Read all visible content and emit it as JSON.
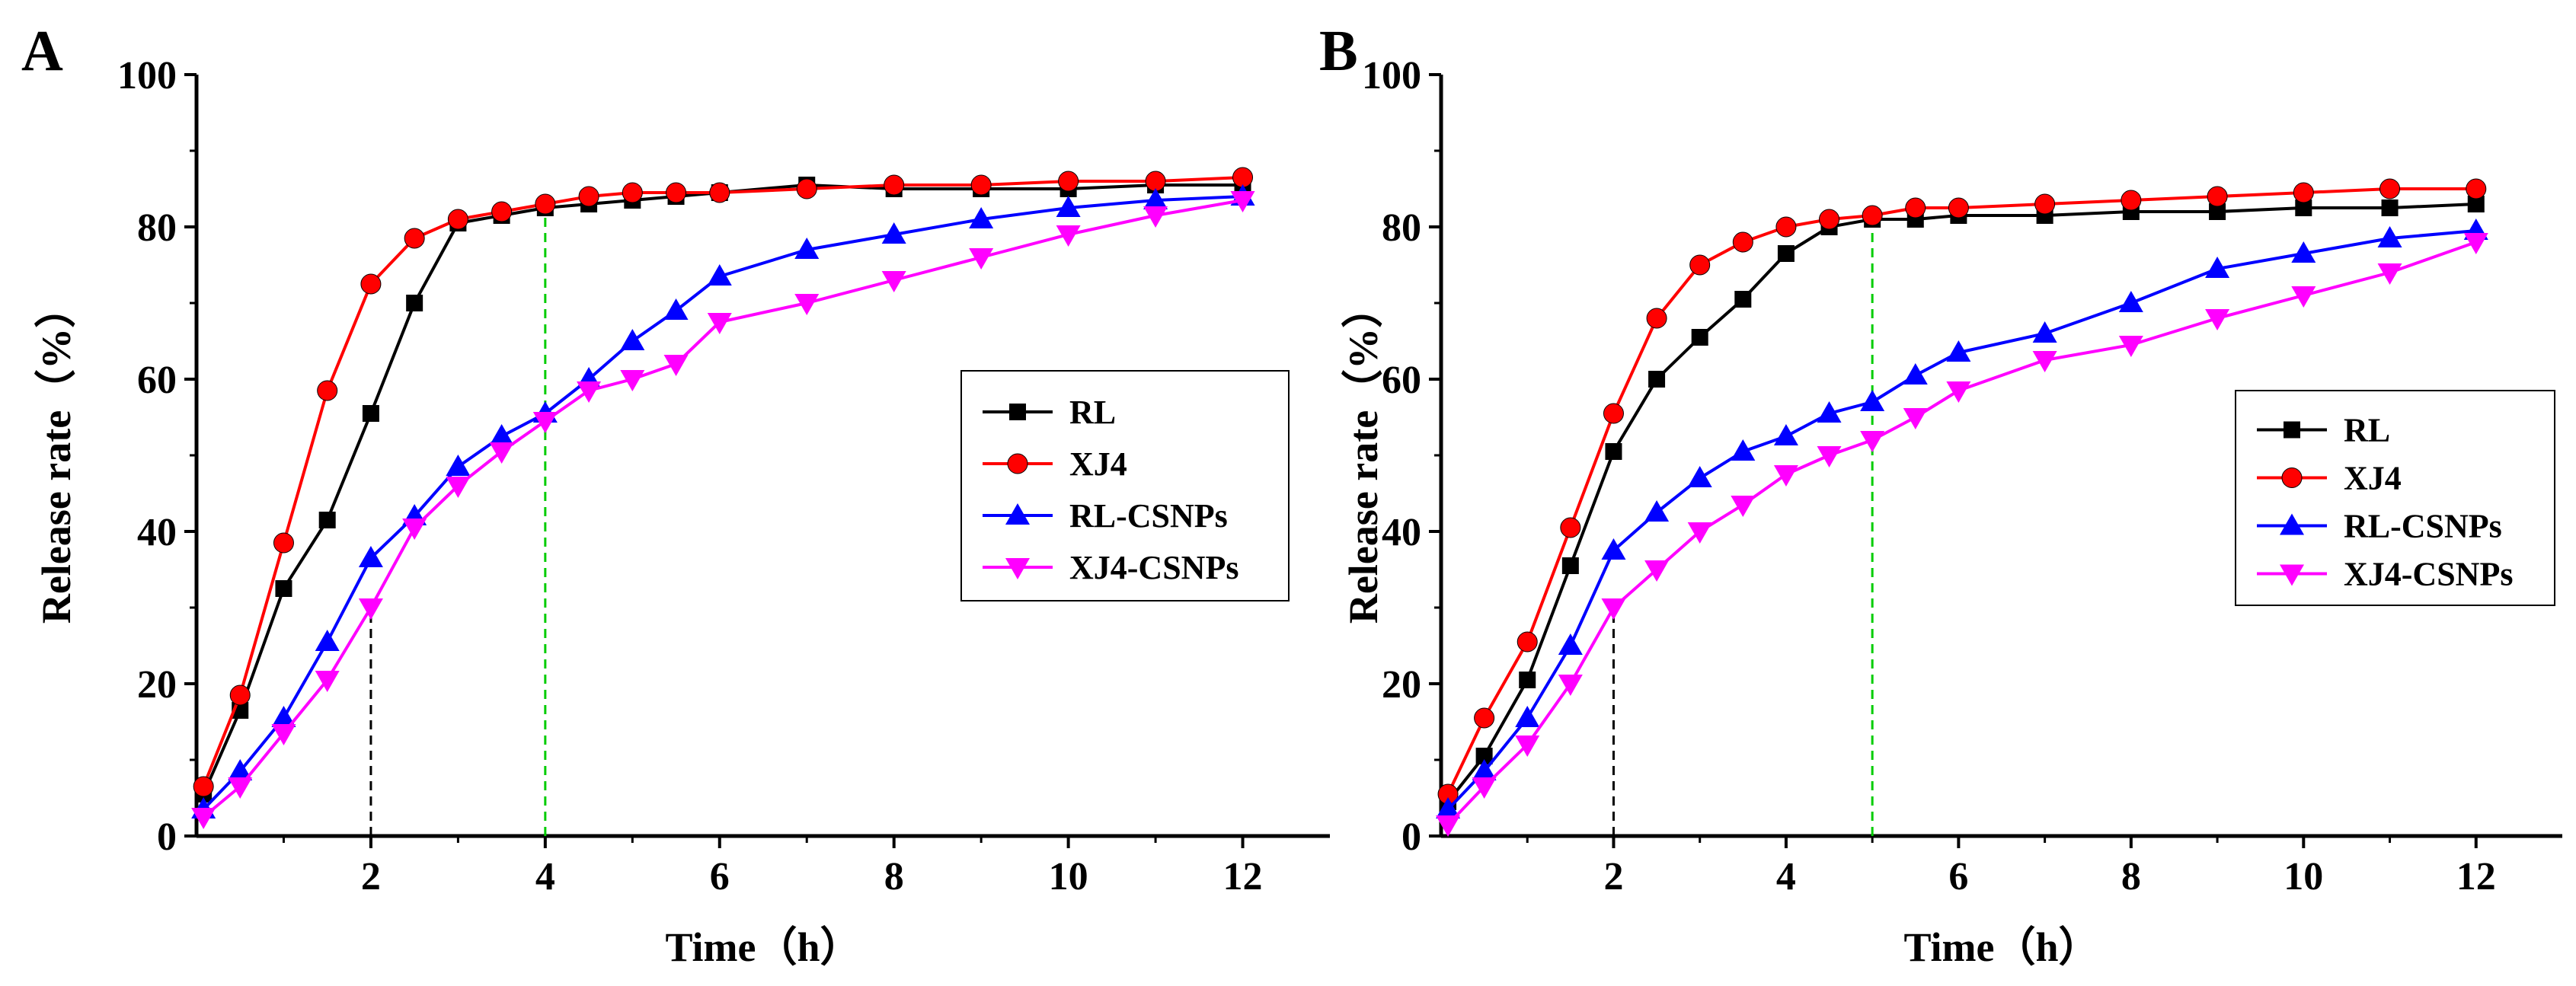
{
  "chart_data": [
    {
      "type": "line",
      "panel_label": "A",
      "title": "",
      "xlabel": "Time（h）",
      "ylabel": "Release rate（%）",
      "xlim": [
        0,
        13
      ],
      "ylim": [
        0,
        100
      ],
      "xticks": [
        2,
        4,
        6,
        8,
        10,
        12
      ],
      "yticks": [
        0,
        20,
        40,
        60,
        80,
        100
      ],
      "grid": false,
      "legend_position": "center-right",
      "reference_lines": [
        {
          "x": 2,
          "y_top": 30,
          "color": "#000000"
        },
        {
          "x": 4,
          "y_top": 82,
          "color": "#00cc00"
        }
      ],
      "series": [
        {
          "name": "RL",
          "color": "#000000",
          "marker": "square",
          "x": [
            0.08,
            0.5,
            1,
            1.5,
            2,
            2.5,
            3,
            3.5,
            4,
            4.5,
            5,
            5.5,
            6,
            7,
            8,
            9,
            10,
            11,
            12
          ],
          "y": [
            5.5,
            16.5,
            32.5,
            41.5,
            55.5,
            70,
            80.5,
            81.5,
            82.5,
            83,
            83.5,
            84,
            84.5,
            85.5,
            85,
            85,
            85,
            85.5,
            85.5
          ]
        },
        {
          "name": "XJ4",
          "color": "#ff0000",
          "marker": "circle",
          "x": [
            0.08,
            0.5,
            1,
            1.5,
            2,
            2.5,
            3,
            3.5,
            4,
            4.5,
            5,
            5.5,
            6,
            7,
            8,
            9,
            10,
            11,
            12
          ],
          "y": [
            6.5,
            18.5,
            38.5,
            58.5,
            72.5,
            78.5,
            81,
            82,
            83,
            84,
            84.5,
            84.5,
            84.5,
            85,
            85.5,
            85.5,
            86,
            86,
            86.5
          ]
        },
        {
          "name": "RL-CSNPs",
          "color": "#0000ff",
          "marker": "triangle-up",
          "x": [
            0.08,
            0.5,
            1,
            1.5,
            2,
            2.5,
            3,
            3.5,
            4,
            4.5,
            5,
            5.5,
            6,
            7,
            8,
            9,
            10,
            11,
            12
          ],
          "y": [
            3.5,
            8.5,
            15.5,
            25.5,
            36.5,
            42,
            48.5,
            52.5,
            55.5,
            60,
            65,
            69,
            73.5,
            77,
            79,
            81,
            82.5,
            83.5,
            84
          ]
        },
        {
          "name": "XJ4-CSNPs",
          "color": "#ff00ff",
          "marker": "triangle-down",
          "x": [
            0.08,
            0.5,
            1,
            1.5,
            2,
            2.5,
            3,
            3.5,
            4,
            4.5,
            5,
            5.5,
            6,
            7,
            8,
            9,
            10,
            11,
            12
          ],
          "y": [
            2.5,
            6.5,
            13.5,
            20.5,
            30,
            40.5,
            46,
            50.5,
            54.5,
            58.5,
            60,
            62,
            67.5,
            70,
            73,
            76,
            79,
            81.5,
            83.5
          ]
        }
      ]
    },
    {
      "type": "line",
      "panel_label": "B",
      "title": "",
      "xlabel": "Time（h）",
      "ylabel": "Release rate（%）",
      "xlim": [
        0,
        13
      ],
      "ylim": [
        0,
        100
      ],
      "xticks": [
        2,
        4,
        6,
        8,
        10,
        12
      ],
      "yticks": [
        0,
        20,
        40,
        60,
        80,
        100
      ],
      "grid": false,
      "legend_position": "center-right",
      "reference_lines": [
        {
          "x": 2,
          "y_top": 30,
          "color": "#000000"
        },
        {
          "x": 5,
          "y_top": 81,
          "color": "#00cc00"
        }
      ],
      "series": [
        {
          "name": "RL",
          "color": "#000000",
          "marker": "square",
          "x": [
            0.08,
            0.5,
            1,
            1.5,
            2,
            2.5,
            3,
            3.5,
            4,
            4.5,
            5,
            5.5,
            6,
            7,
            8,
            9,
            10,
            11,
            12
          ],
          "y": [
            4.5,
            10.5,
            20.5,
            35.5,
            50.5,
            60,
            65.5,
            70.5,
            76.5,
            80,
            81,
            81,
            81.5,
            81.5,
            82,
            82,
            82.5,
            82.5,
            83
          ]
        },
        {
          "name": "XJ4",
          "color": "#ff0000",
          "marker": "circle",
          "x": [
            0.08,
            0.5,
            1,
            1.5,
            2,
            2.5,
            3,
            3.5,
            4,
            4.5,
            5,
            5.5,
            6,
            7,
            8,
            9,
            10,
            11,
            12
          ],
          "y": [
            5.5,
            15.5,
            25.5,
            40.5,
            55.5,
            68,
            75,
            78,
            80,
            81,
            81.5,
            82.5,
            82.5,
            83,
            83.5,
            84,
            84.5,
            85,
            85
          ]
        },
        {
          "name": "RL-CSNPs",
          "color": "#0000ff",
          "marker": "triangle-up",
          "x": [
            0.08,
            0.5,
            1,
            1.5,
            2,
            2.5,
            3,
            3.5,
            4,
            4.5,
            5,
            5.5,
            6,
            7,
            8,
            9,
            10,
            11,
            12
          ],
          "y": [
            3.5,
            8.5,
            15.5,
            25,
            37.5,
            42.5,
            47,
            50.5,
            52.5,
            55.5,
            57,
            60.5,
            63.5,
            66,
            70,
            74.5,
            76.5,
            78.5,
            79.5
          ]
        },
        {
          "name": "XJ4-CSNPs",
          "color": "#ff00ff",
          "marker": "triangle-down",
          "x": [
            0.08,
            0.5,
            1,
            1.5,
            2,
            2.5,
            3,
            3.5,
            4,
            4.5,
            5,
            5.5,
            6,
            7,
            8,
            9,
            10,
            11,
            12
          ],
          "y": [
            1.5,
            6.5,
            12,
            20,
            30,
            35,
            40,
            43.5,
            47.5,
            50,
            52,
            55,
            58.5,
            62.5,
            64.5,
            68,
            71,
            74,
            78
          ]
        }
      ]
    }
  ]
}
